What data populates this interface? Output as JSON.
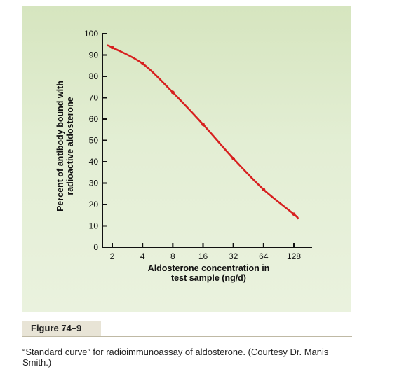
{
  "figure": {
    "label": "Figure 74–9",
    "caption": "“Standard curve” for radioimmunoassay of aldosterone. (Courtesy Dr. Manis Smith.)"
  },
  "colors": {
    "curve": "#d7201f",
    "panel": "#dfeacc",
    "axis": "#111111"
  },
  "chart_data": {
    "type": "line",
    "title": "",
    "xlabel_lines": [
      "Aldosterone concentration in",
      "test sample (ng/d)"
    ],
    "ylabel_lines": [
      "Percent of antibody bound with",
      "radioactive aldosterone"
    ],
    "x_scale": "log2",
    "x_ticks": [
      2,
      4,
      8,
      16,
      32,
      64,
      128
    ],
    "y_ticks": [
      0,
      10,
      20,
      30,
      40,
      50,
      60,
      70,
      80,
      90,
      100
    ],
    "ylim": [
      0,
      100
    ],
    "grid": false,
    "legend": "none",
    "series": [
      {
        "x": [
          2,
          4,
          8,
          16,
          32,
          64,
          128
        ],
        "y": [
          93.5,
          86,
          72.5,
          57.5,
          41.5,
          27,
          15.5
        ]
      }
    ],
    "curve_extent": {
      "x_start": 1.8,
      "y_start": 94.5,
      "x_end": 140,
      "y_end": 13.5
    }
  }
}
